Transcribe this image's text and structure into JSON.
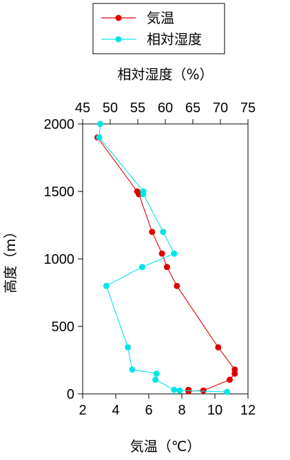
{
  "chart_data": {
    "type": "line",
    "xlabel_bottom": "気温（℃）",
    "xlabel_top": "相対湿度（%）",
    "ylabel": "高度（m）",
    "xlim_bottom": [
      2,
      12
    ],
    "xlim_top": [
      45,
      75
    ],
    "ylim": [
      0,
      2000
    ],
    "xticks_bottom": [
      2,
      4,
      6,
      8,
      10,
      12
    ],
    "xticks_top": [
      45,
      50,
      55,
      60,
      65,
      70,
      75
    ],
    "yticks": [
      0,
      500,
      1000,
      1500,
      2000
    ],
    "grid": false,
    "legend_position": "top-center",
    "series": [
      {
        "name": "気温",
        "axis": "bottom",
        "color": "#dd0000",
        "points": [
          [
            2.9,
            1900
          ],
          [
            5.3,
            1500
          ],
          [
            5.4,
            1480
          ],
          [
            6.2,
            1200
          ],
          [
            6.8,
            1040
          ],
          [
            7.1,
            940
          ],
          [
            7.7,
            800
          ],
          [
            10.2,
            345
          ],
          [
            11.2,
            180
          ],
          [
            11.2,
            150
          ],
          [
            10.9,
            105
          ],
          [
            9.3,
            25
          ],
          [
            8.4,
            20
          ],
          [
            8.4,
            30
          ]
        ]
      },
      {
        "name": "相対湿度",
        "axis": "top",
        "color": "#00e5e5",
        "points": [
          [
            48.2,
            2000
          ],
          [
            48.0,
            1900
          ],
          [
            56.0,
            1500
          ],
          [
            56.0,
            1480
          ],
          [
            59.6,
            1200
          ],
          [
            61.6,
            1040
          ],
          [
            55.8,
            940
          ],
          [
            49.3,
            800
          ],
          [
            53.2,
            345
          ],
          [
            54.0,
            180
          ],
          [
            58.4,
            150
          ],
          [
            58.2,
            105
          ],
          [
            61.6,
            30
          ],
          [
            62.6,
            25
          ],
          [
            71.2,
            15
          ]
        ]
      }
    ]
  }
}
